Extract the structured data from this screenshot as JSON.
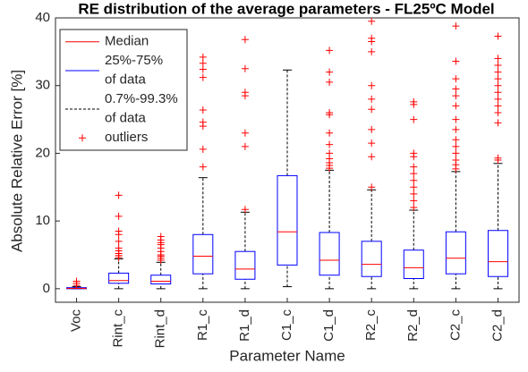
{
  "chart_data": {
    "type": "box",
    "title": "RE distribution of the average parameters - FL25ºC Model",
    "xlabel": "Parameter Name",
    "ylabel": "Absolute Relative Error [%]",
    "categories": [
      "Voc",
      "Rint_c",
      "Rint_d",
      "R1_c",
      "R1_d",
      "C1_c",
      "C1_d",
      "R2_c",
      "R2_d",
      "C2_c",
      "C2_d"
    ],
    "boxes": [
      {
        "min": 0,
        "q1": 0,
        "median": 0.05,
        "q3": 0.15,
        "max": 0.3,
        "outliers": [
          0.5,
          0.8,
          1.1
        ]
      },
      {
        "min": 0,
        "q1": 0.8,
        "median": 1.2,
        "q3": 2.3,
        "max": 4.4,
        "outliers": [
          4.6,
          4.9,
          5.2,
          5.6,
          6.0,
          7.0,
          8.0,
          8.5,
          10.7,
          13.8
        ]
      },
      {
        "min": 0,
        "q1": 0.7,
        "median": 1.1,
        "q3": 2.0,
        "max": 3.9,
        "outliers": [
          4.2,
          4.5,
          4.8,
          5.0,
          5.5,
          6.0,
          6.5,
          6.8,
          7.2,
          7.7
        ]
      },
      {
        "min": 0,
        "q1": 2.2,
        "median": 4.8,
        "q3": 8.0,
        "max": 16.4,
        "outliers": [
          18.0,
          20.6,
          24.0,
          24.6,
          26.4,
          31.2,
          32.4,
          33.3,
          34.2
        ]
      },
      {
        "min": 0,
        "q1": 1.4,
        "median": 2.9,
        "q3": 5.5,
        "max": 11.3,
        "outliers": [
          11.7,
          21.0,
          23.0,
          28.5,
          29.0,
          32.5,
          36.8
        ]
      },
      {
        "min": 0.3,
        "q1": 3.5,
        "median": 8.4,
        "q3": 16.7,
        "max": 32.3,
        "outliers": []
      },
      {
        "min": 0,
        "q1": 2.0,
        "median": 4.2,
        "q3": 8.3,
        "max": 17.5,
        "outliers": [
          17.8,
          18.2,
          18.6,
          19.2,
          20.0,
          21.3,
          23.0,
          25.7,
          26.0,
          30.5,
          32.0,
          35.2
        ]
      },
      {
        "min": 0,
        "q1": 1.8,
        "median": 3.6,
        "q3": 7.0,
        "max": 14.6,
        "outliers": [
          15.0,
          19.5,
          21.5,
          23.5,
          26.5,
          28.0,
          30.0,
          35.0,
          36.5,
          37.0,
          39.5
        ]
      },
      {
        "min": 0,
        "q1": 1.5,
        "median": 3.1,
        "q3": 5.7,
        "max": 11.6,
        "outliers": [
          12,
          13,
          14,
          15,
          16,
          17,
          18,
          19.5,
          20,
          25,
          27.2,
          27.6
        ]
      },
      {
        "min": 0,
        "q1": 2.2,
        "median": 4.5,
        "q3": 8.4,
        "max": 17.3,
        "outliers": [
          17.7,
          18.3,
          19,
          20,
          21,
          22,
          23.5,
          25,
          27,
          28.5,
          29.5,
          31,
          33.6,
          38.8
        ]
      },
      {
        "min": 0,
        "q1": 1.8,
        "median": 4.0,
        "q3": 8.6,
        "max": 18.5,
        "outliers": [
          19,
          19.3,
          24.5,
          26,
          27,
          28,
          29,
          30,
          31,
          32,
          33,
          34,
          37.3
        ]
      }
    ],
    "colors": {
      "median": "#ff0000",
      "box": "#0000ff",
      "whisker": "#000000",
      "outliers": "#ff0000"
    },
    "legend": {
      "median": [
        "Median"
      ],
      "box": [
        "25%-75%",
        "of data"
      ],
      "whisker": [
        "0.7%-99.3%",
        "of data"
      ],
      "outliers": [
        "outliers"
      ]
    },
    "legend_position": "upper left",
    "ylim": [
      -2,
      40
    ],
    "yticks": [
      0,
      10,
      20,
      30,
      40
    ]
  }
}
